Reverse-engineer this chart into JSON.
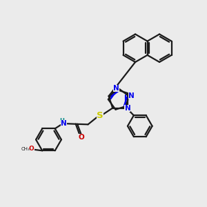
{
  "bg_color": "#ebebeb",
  "bond_color": "#1a1a1a",
  "bond_width": 1.6,
  "atom_colors": {
    "N": "#0000ee",
    "S": "#cccc00",
    "O": "#cc0000",
    "H": "#008888"
  },
  "font_size": 7.5,
  "fig_size": [
    3.0,
    3.0
  ],
  "dpi": 100
}
